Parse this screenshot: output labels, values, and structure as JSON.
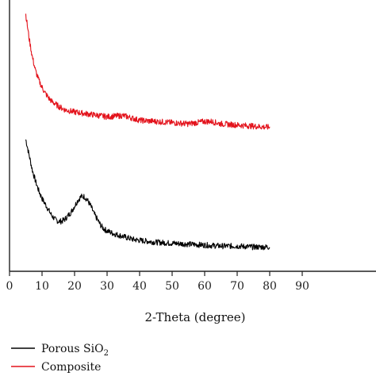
{
  "chart_data": {
    "type": "line",
    "title": "",
    "xlabel": "2-Theta (degree)",
    "ylabel": "",
    "xlim": [
      0,
      90
    ],
    "x_ticks": [
      0,
      10,
      20,
      30,
      40,
      50,
      60,
      70,
      80,
      90
    ],
    "y_ticks_shown": false,
    "grid": false,
    "legend_position": "bottom-left",
    "series": [
      {
        "name": "Porous SiO2",
        "name_main": "Porous SiO",
        "name_subscript": "2",
        "color": "#000000",
        "points": [
          [
            5,
            0.58
          ],
          [
            6,
            0.5
          ],
          [
            7,
            0.42
          ],
          [
            8,
            0.36
          ],
          [
            9,
            0.31
          ],
          [
            10,
            0.27
          ],
          [
            11,
            0.24
          ],
          [
            12,
            0.21
          ],
          [
            13,
            0.18
          ],
          [
            14,
            0.16
          ],
          [
            15,
            0.15
          ],
          [
            16,
            0.15
          ],
          [
            17,
            0.16
          ],
          [
            18,
            0.18
          ],
          [
            19,
            0.2
          ],
          [
            20,
            0.23
          ],
          [
            21,
            0.26
          ],
          [
            22,
            0.28
          ],
          [
            23,
            0.28
          ],
          [
            24,
            0.26
          ],
          [
            25,
            0.23
          ],
          [
            26,
            0.19
          ],
          [
            27,
            0.16
          ],
          [
            28,
            0.13
          ],
          [
            29,
            0.11
          ],
          [
            30,
            0.1
          ],
          [
            32,
            0.085
          ],
          [
            34,
            0.075
          ],
          [
            36,
            0.065
          ],
          [
            38,
            0.055
          ],
          [
            40,
            0.05
          ],
          [
            45,
            0.04
          ],
          [
            50,
            0.035
          ],
          [
            55,
            0.03
          ],
          [
            60,
            0.025
          ],
          [
            65,
            0.02
          ],
          [
            70,
            0.02
          ],
          [
            75,
            0.015
          ],
          [
            80,
            0.015
          ]
        ]
      },
      {
        "name": "Composite",
        "color": "#e3121b",
        "points": [
          [
            5,
            1.0
          ],
          [
            6,
            0.9
          ],
          [
            7,
            0.82
          ],
          [
            8,
            0.76
          ],
          [
            9,
            0.72
          ],
          [
            10,
            0.69
          ],
          [
            11,
            0.665
          ],
          [
            12,
            0.645
          ],
          [
            13,
            0.63
          ],
          [
            14,
            0.62
          ],
          [
            15,
            0.61
          ],
          [
            17,
            0.595
          ],
          [
            20,
            0.585
          ],
          [
            25,
            0.575
          ],
          [
            30,
            0.565
          ],
          [
            35,
            0.57
          ],
          [
            40,
            0.55
          ],
          [
            45,
            0.545
          ],
          [
            50,
            0.54
          ],
          [
            55,
            0.535
          ],
          [
            60,
            0.545
          ],
          [
            62,
            0.545
          ],
          [
            65,
            0.535
          ],
          [
            70,
            0.53
          ],
          [
            75,
            0.525
          ],
          [
            80,
            0.52
          ]
        ]
      }
    ]
  }
}
